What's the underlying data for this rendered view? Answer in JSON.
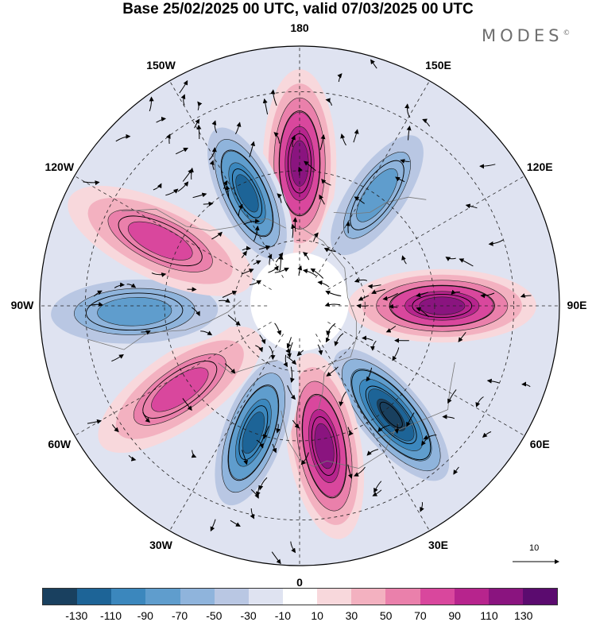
{
  "title": "Base 25/02/2025 00 UTC, valid 07/03/2025 00 UTC",
  "brand": "MODES",
  "brand_mark": "©",
  "map": {
    "projection": "north-polar-stereographic",
    "longitude_labels": [
      "180",
      "150E",
      "120E",
      "90E",
      "60E",
      "30E",
      "0",
      "30W",
      "60W",
      "90W",
      "120W",
      "150W"
    ],
    "vector_reference_label": "10",
    "anomaly_centers": [
      {
        "lon": 180,
        "lat": 48,
        "sign": "positive",
        "magnitude": 125
      },
      {
        "lon": -155,
        "lat": 53,
        "sign": "negative",
        "magnitude": 110
      },
      {
        "lon": 145,
        "lat": 50,
        "sign": "negative",
        "magnitude": 70
      },
      {
        "lon": 90,
        "lat": 48,
        "sign": "positive",
        "magnitude": 115
      },
      {
        "lon": 40,
        "lat": 48,
        "sign": "negative",
        "magnitude": 130
      },
      {
        "lon": 10,
        "lat": 48,
        "sign": "positive",
        "magnitude": 125
      },
      {
        "lon": -20,
        "lat": 50,
        "sign": "negative",
        "magnitude": 110
      },
      {
        "lon": -55,
        "lat": 47,
        "sign": "positive",
        "magnitude": 80
      },
      {
        "lon": -88,
        "lat": 42,
        "sign": "negative",
        "magnitude": 70
      },
      {
        "lon": -115,
        "lat": 45,
        "sign": "positive",
        "magnitude": 75
      }
    ]
  },
  "colorbar": {
    "ticks": [
      "-130",
      "-110",
      "-90",
      "-70",
      "-50",
      "-30",
      "-10",
      "10",
      "30",
      "50",
      "70",
      "90",
      "110",
      "130"
    ],
    "colors": [
      "#19405f",
      "#1d6497",
      "#3b87bd",
      "#5f9dcd",
      "#8fb4dc",
      "#b9c7e3",
      "#dfe3f1",
      "#ffffff",
      "#f8d8dc",
      "#f3b1c0",
      "#ea80ab",
      "#d9479d",
      "#b7248d",
      "#8a147f",
      "#5b0b6f"
    ]
  }
}
